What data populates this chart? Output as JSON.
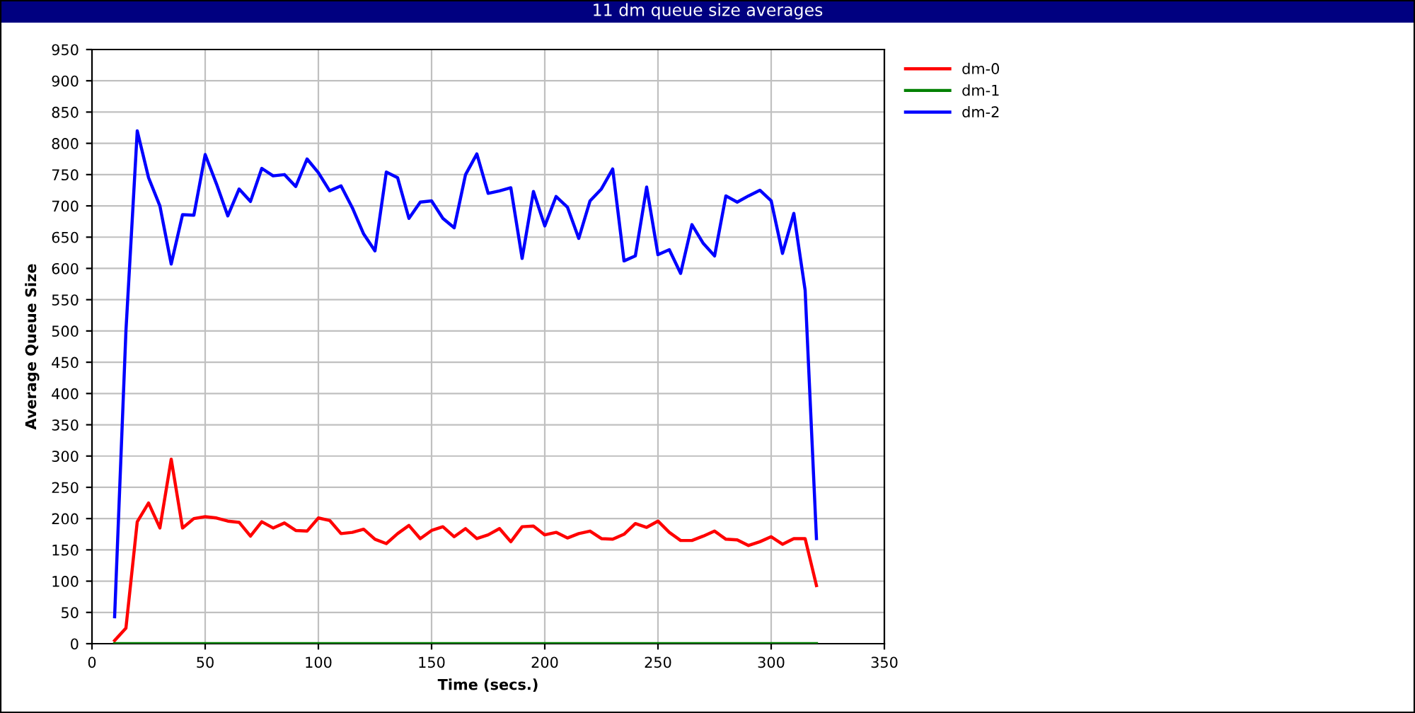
{
  "chart_data": {
    "type": "line",
    "title": "11 dm queue size averages",
    "xlabel": "Time (secs.)",
    "ylabel": "Average Queue Size",
    "x": [
      10,
      15,
      20,
      25,
      30,
      35,
      40,
      45,
      50,
      55,
      60,
      65,
      70,
      75,
      80,
      85,
      90,
      95,
      100,
      105,
      110,
      115,
      120,
      125,
      130,
      135,
      140,
      145,
      150,
      155,
      160,
      165,
      170,
      175,
      180,
      185,
      190,
      195,
      200,
      205,
      210,
      215,
      220,
      225,
      230,
      235,
      240,
      245,
      250,
      255,
      260,
      265,
      270,
      275,
      280,
      285,
      290,
      295,
      300,
      305,
      310,
      315,
      320
    ],
    "series": [
      {
        "name": "dm-0",
        "color": "#ff0000",
        "values": [
          5,
          25,
          195,
          225,
          185,
          295,
          185,
          200,
          203,
          201,
          196,
          194,
          172,
          195,
          185,
          193,
          181,
          180,
          201,
          197,
          176,
          178,
          183,
          167,
          160,
          176,
          189,
          168,
          181,
          187,
          171,
          184,
          168,
          174,
          184,
          163,
          187,
          188,
          174,
          178,
          169,
          176,
          180,
          168,
          167,
          175,
          192,
          186,
          196,
          178,
          165,
          165,
          172,
          180,
          167,
          166,
          157,
          163,
          171,
          159,
          168,
          168,
          93
        ]
      },
      {
        "name": "dm-1",
        "color": "#008000",
        "values": [
          0,
          0,
          0,
          0,
          0,
          0,
          0,
          0,
          0,
          0,
          0,
          0,
          0,
          0,
          0,
          0,
          0,
          0,
          0,
          0,
          0,
          0,
          0,
          0,
          0,
          0,
          0,
          0,
          0,
          0,
          0,
          0,
          0,
          0,
          0,
          0,
          0,
          0,
          0,
          0,
          0,
          0,
          0,
          0,
          0,
          0,
          0,
          0,
          0,
          0,
          0,
          0,
          0,
          0,
          0,
          0,
          0,
          0,
          0,
          0,
          0,
          0,
          0
        ]
      },
      {
        "name": "dm-2",
        "color": "#0000ff",
        "values": [
          43,
          500,
          820,
          745,
          700,
          607,
          686,
          685,
          782,
          735,
          684,
          727,
          707,
          760,
          748,
          750,
          731,
          775,
          753,
          724,
          732,
          697,
          655,
          628,
          754,
          745,
          680,
          706,
          708,
          680,
          665,
          750,
          783,
          720,
          724,
          729,
          616,
          723,
          668,
          715,
          698,
          648,
          708,
          727,
          759,
          612,
          620,
          730,
          622,
          630,
          592,
          670,
          640,
          620,
          716,
          706,
          716,
          725,
          708,
          624,
          688,
          565,
          168
        ]
      }
    ],
    "xlim": [
      0,
      350
    ],
    "xticks": [
      0,
      50,
      100,
      150,
      200,
      250,
      300,
      350
    ],
    "ylim": [
      0,
      950
    ],
    "yticks": [
      0,
      50,
      100,
      150,
      200,
      250,
      300,
      350,
      400,
      450,
      500,
      550,
      600,
      650,
      700,
      750,
      800,
      850,
      900,
      950
    ],
    "grid": true,
    "legend": "top right",
    "marker": "none",
    "line_style": "solid"
  }
}
